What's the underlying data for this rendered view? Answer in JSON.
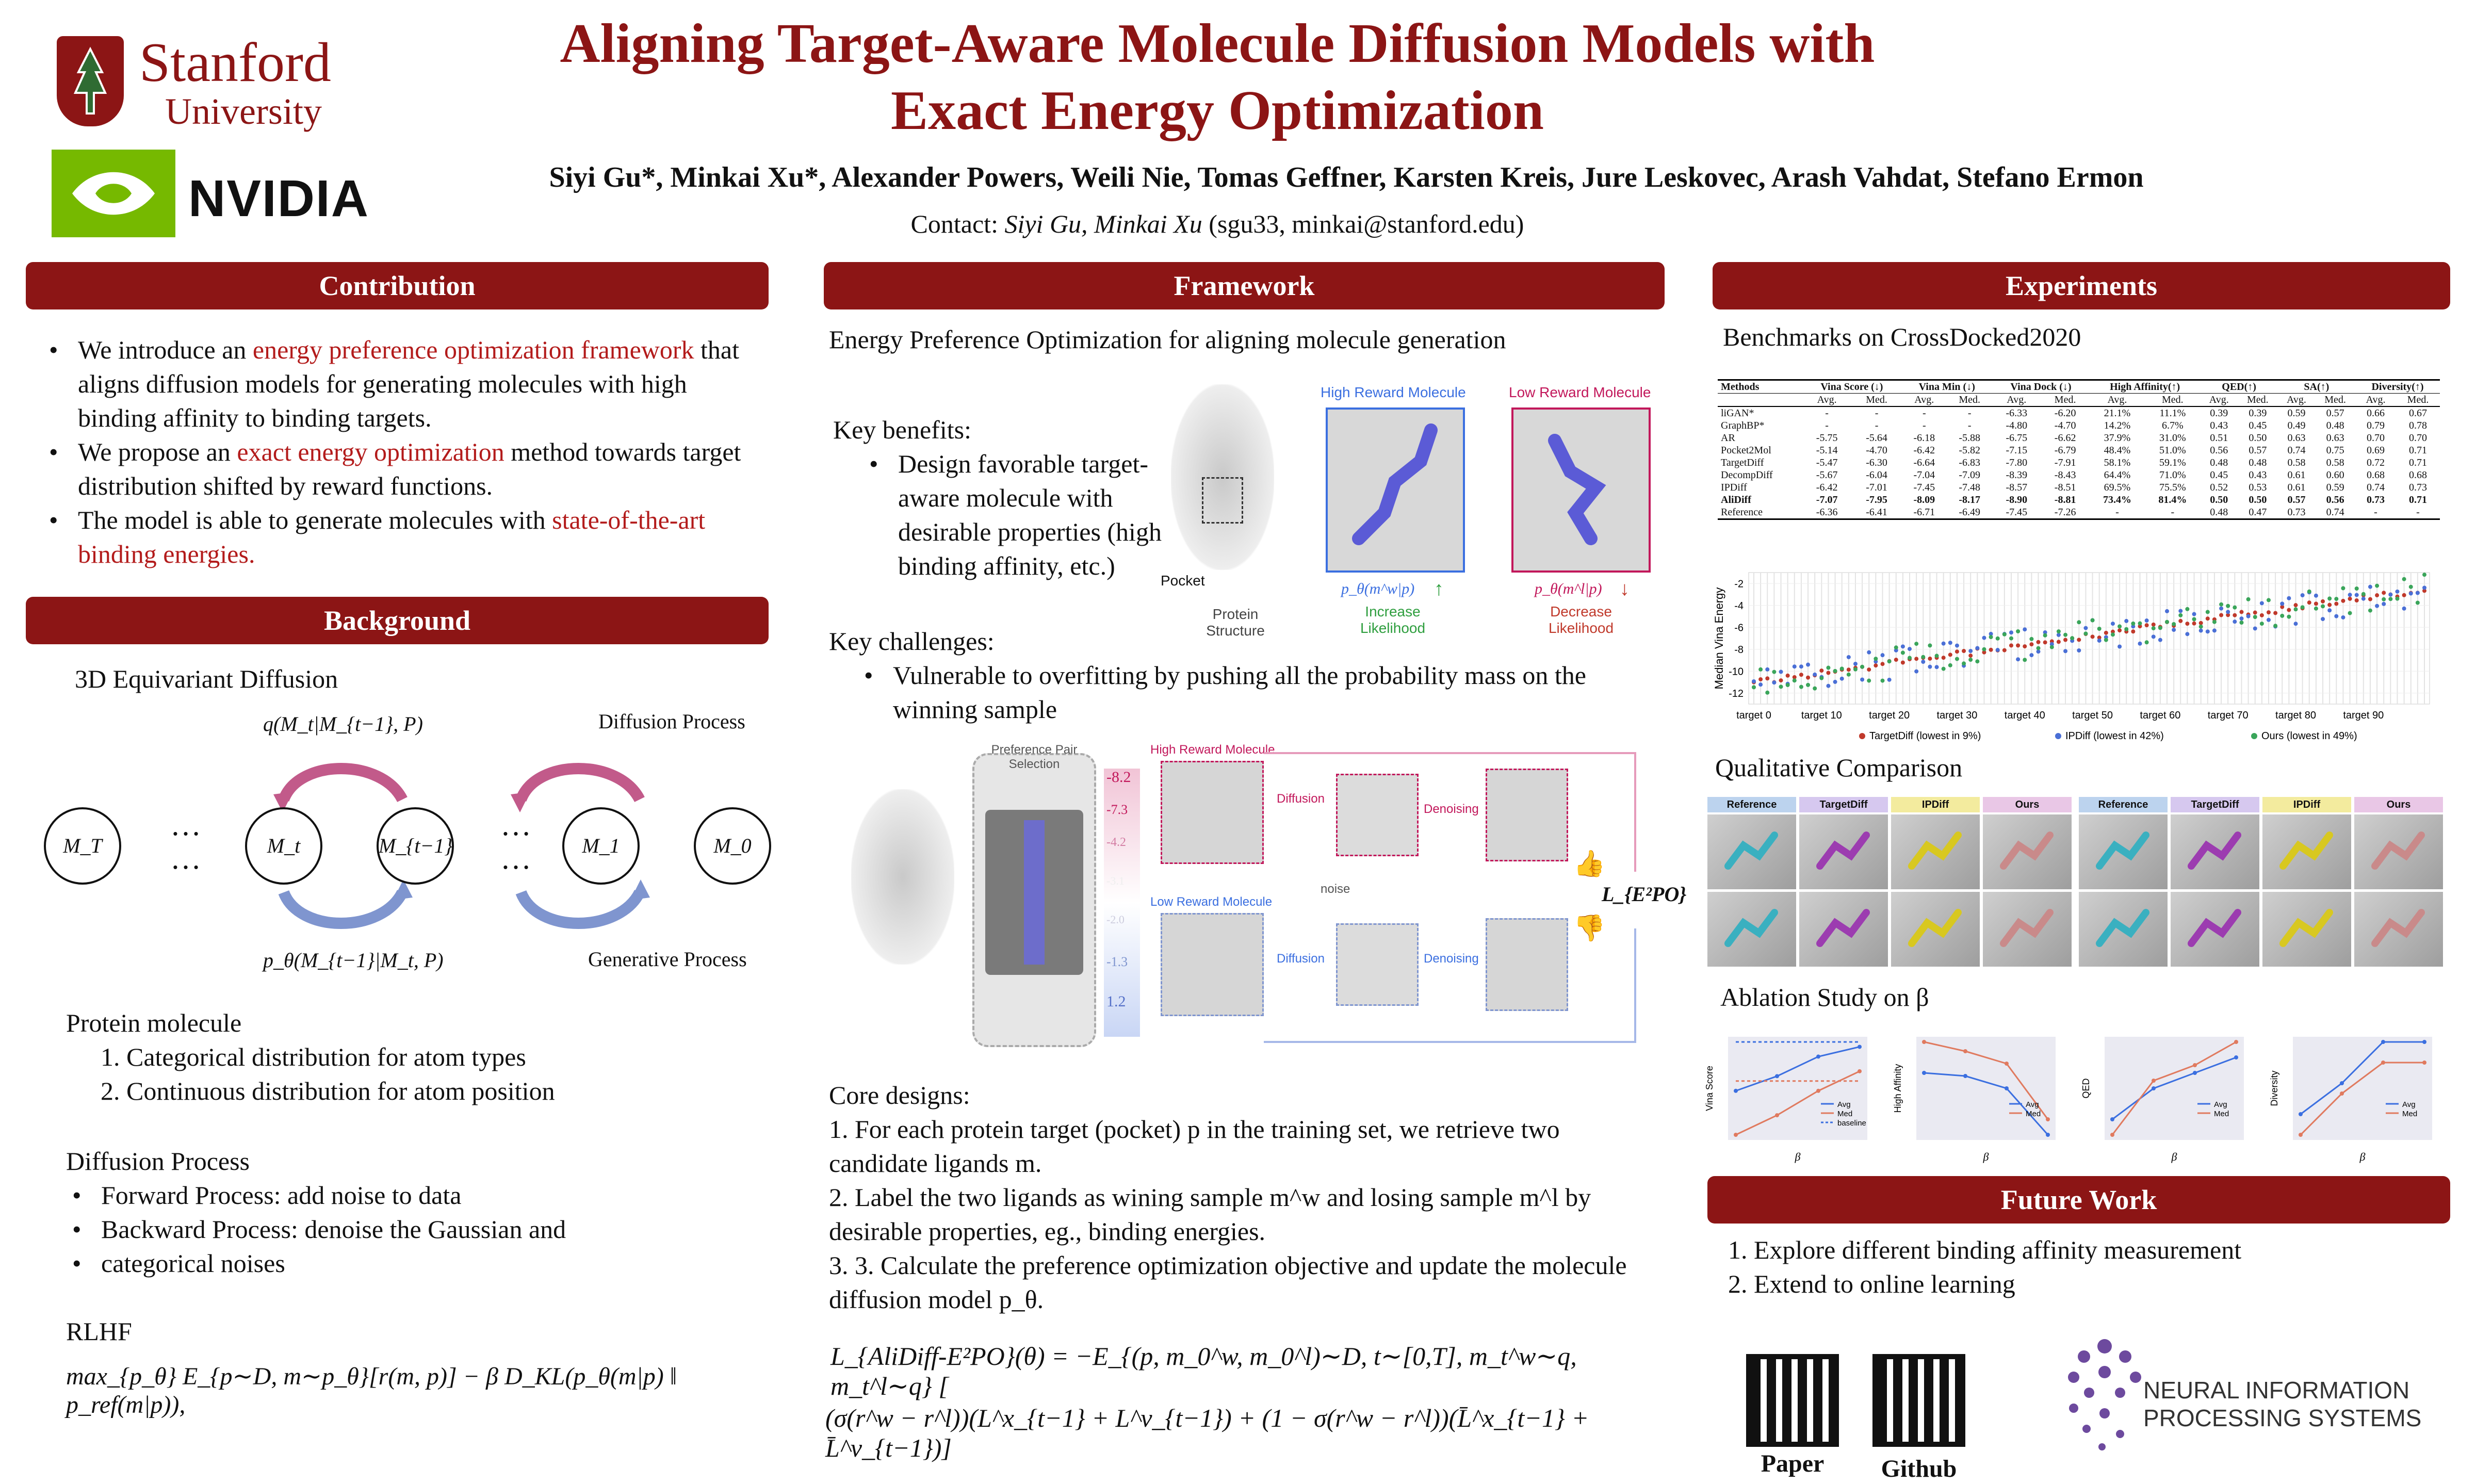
{
  "header": {
    "university": "Stanford",
    "university_sub": "University",
    "nvidia": "NVIDIA",
    "title_line1": "Aligning Target-Aware Molecule Diffusion Models with",
    "title_line2": "Exact Energy Optimization",
    "authors": "Siyi Gu*, Minkai Xu*, Alexander Powers, Weili Nie, Tomas Geffner, Karsten Kreis, Jure Leskovec, Arash Vahdat, Stefano Ermon",
    "contact_prefix": "Contact: ",
    "contact_names": "Siyi Gu, Minkai Xu",
    "contact_emails": " (sgu33, minkai@stanford.edu)"
  },
  "contribution": {
    "heading": "Contribution",
    "b1_a": "We introduce an ",
    "b1_red": "energy preference optimization framework",
    "b1_b": " that aligns diffusion models for generating molecules with high binding affinity to binding targets.",
    "b2_a": "We propose an ",
    "b2_red": "exact energy optimization",
    "b2_b": " method towards target distribution shifted by reward functions.",
    "b3_a": "The model is able to generate molecules with ",
    "b3_red": "state-of-the-art binding energies."
  },
  "background": {
    "heading": "Background",
    "sub": "3D Equivariant Diffusion",
    "q_label": "q(M_t|M_{t−1}, P)",
    "p_label": "p_θ(M_{t−1}|M_t, P)",
    "diff_proc": "Diffusion Process",
    "gen_proc": "Generative Process",
    "nodes": [
      "M_T",
      "M_t",
      "M_{t−1}",
      "M_1",
      "M_0"
    ],
    "dots": "…",
    "protein_title": "Protein molecule",
    "protein_items": [
      "1. Categorical distribution for atom types",
      "2. Continuous distribution for atom position"
    ],
    "diffusion_title": "Diffusion Process",
    "diffusion_items": [
      "Forward Process: add noise to data",
      "Backward Process: denoise the Gaussian and",
      "categorical noises"
    ],
    "rlhf_title": "RLHF",
    "rlhf_eq": "max_{p_θ} E_{p∼D, m∼p_θ}[r(m, p)] − β D_KL(p_θ(m|p) ‖ p_ref(m|p)),"
  },
  "framework": {
    "heading": "Framework",
    "intro": "Energy Preference Optimization for aligning molecule generation",
    "benefits_title": "Key benefits:",
    "benefit": "Design favorable target-aware molecule with desirable properties (high binding affinity, etc.)",
    "challenges_title": "Key challenges:",
    "challenge": "Vulnerable to overfitting by pushing all the probability mass on the winning sample",
    "fig1": {
      "high": "High Reward Molecule",
      "low": "Low Reward Molecule",
      "pocket": "Pocket",
      "protein": "Protein Structure",
      "pw": "p_θ(m^w|p)",
      "pl": "p_θ(m^l|p)",
      "inc": "Increase Likelihood",
      "dec": "Decrease Likelihood"
    },
    "fig2": {
      "pref": "Preference Pair Selection",
      "high": "High Reward Molecule",
      "low": "Low Reward Molecule",
      "diffusion": "Diffusion",
      "denoising": "Denoising",
      "noise": "noise",
      "loss": "L_{E²PO}",
      "scores": [
        "-8.2",
        "-7.3",
        "-4.2",
        "-3.1",
        "-2.0",
        "-1.3",
        "1.2"
      ]
    },
    "core_title": "Core designs:",
    "core_items": [
      "1.    For each protein target (pocket) p in the training set, we retrieve two candidate ligands m.",
      "2.   Label the two ligands as wining sample m^w and losing sample m^l by desirable properties, eg., binding energies.",
      "3.    3. Calculate the preference optimization objective and update the molecule diffusion model p_θ."
    ],
    "loss_eq_1": "L_{AliDiff-E²PO}(θ) = −E_{(p, m_0^w, m_0^l)∼D, t∼[0,T], m_t^w∼q, m_t^l∼q} [",
    "loss_eq_2": "(σ(r^w − r^l))(L^x_{t−1} + L^v_{t−1}) + (1 − σ(r^w − r^l))(L̄^x_{t−1} + L̄^v_{t−1})]"
  },
  "experiments": {
    "heading": "Experiments",
    "bench_title": "Benchmarks on CrossDocked2020",
    "table": {
      "groups": [
        "Methods",
        "Vina Score (↓)",
        "Vina Min (↓)",
        "Vina Dock (↓)",
        "High Affinity(↑)",
        "QED(↑)",
        "SA(↑)",
        "Diversity(↑)"
      ],
      "sub": [
        "",
        "Avg.",
        "Med.",
        "Avg.",
        "Med.",
        "Avg.",
        "Med.",
        "Avg.",
        "Med.",
        "Avg.",
        "Med.",
        "Avg.",
        "Med.",
        "Avg.",
        "Med."
      ],
      "rows": [
        [
          "liGAN*",
          "-",
          "-",
          "-",
          "-",
          "-6.33",
          "-6.20",
          "21.1%",
          "11.1%",
          "0.39",
          "0.39",
          "0.59",
          "0.57",
          "0.66",
          "0.67"
        ],
        [
          "GraphBP*",
          "-",
          "-",
          "-",
          "-",
          "-4.80",
          "-4.70",
          "14.2%",
          "6.7%",
          "0.43",
          "0.45",
          "0.49",
          "0.48",
          "0.79",
          "0.78"
        ],
        [
          "AR",
          "-5.75",
          "-5.64",
          "-6.18",
          "-5.88",
          "-6.75",
          "-6.62",
          "37.9%",
          "31.0%",
          "0.51",
          "0.50",
          "0.63",
          "0.63",
          "0.70",
          "0.70"
        ],
        [
          "Pocket2Mol",
          "-5.14",
          "-4.70",
          "-6.42",
          "-5.82",
          "-7.15",
          "-6.79",
          "48.4%",
          "51.0%",
          "0.56",
          "0.57",
          "0.74",
          "0.75",
          "0.69",
          "0.71"
        ],
        [
          "TargetDiff",
          "-5.47",
          "-6.30",
          "-6.64",
          "-6.83",
          "-7.80",
          "-7.91",
          "58.1%",
          "59.1%",
          "0.48",
          "0.48",
          "0.58",
          "0.58",
          "0.72",
          "0.71"
        ],
        [
          "DecompDiff",
          "-5.67",
          "-6.04",
          "-7.04",
          "-7.09",
          "-8.39",
          "-8.43",
          "64.4%",
          "71.0%",
          "0.45",
          "0.43",
          "0.61",
          "0.60",
          "0.68",
          "0.68"
        ],
        [
          "IPDiff",
          "-6.42",
          "-7.01",
          "-7.45",
          "-7.48",
          "-8.57",
          "-8.51",
          "69.5%",
          "75.5%",
          "0.52",
          "0.53",
          "0.61",
          "0.59",
          "0.74",
          "0.73"
        ],
        [
          "AliDiff",
          "-7.07",
          "-7.95",
          "-8.09",
          "-8.17",
          "-8.90",
          "-8.81",
          "73.4%",
          "81.4%",
          "0.50",
          "0.50",
          "0.57",
          "0.56",
          "0.73",
          "0.71"
        ],
        [
          "Reference",
          "-6.36",
          "-6.41",
          "-6.71",
          "-6.49",
          "-7.45",
          "-7.26",
          "-",
          "-",
          "0.48",
          "0.47",
          "0.73",
          "0.74",
          "-",
          "-"
        ]
      ]
    },
    "qual_title": "Qualitative Comparison",
    "qual_cols": [
      "Reference",
      "TargetDiff",
      "IPDiff",
      "Ours"
    ],
    "ablation_title": "Ablation Study on β",
    "future_heading": "Future Work",
    "future_items": [
      "1.    Explore different binding affinity measurement",
      "2.    Extend to online learning"
    ],
    "paper_label": "Paper",
    "github_label": "Github",
    "neurips_line1": "NEURAL INFORMATION",
    "neurips_line2": "PROCESSING SYSTEMS"
  },
  "chart_data": [
    {
      "type": "scatter",
      "ylabel": "Median Vina Energy",
      "xlabel": "",
      "x_ticks": [
        "target 0",
        "target 10",
        "target 20",
        "target 30",
        "target 40",
        "target 50",
        "target 60",
        "target 70",
        "target 80",
        "target 90"
      ],
      "y_ticks": [
        -2,
        -4,
        -6,
        -8,
        -10,
        -12
      ],
      "ylim": [
        -13,
        -1
      ],
      "series": [
        {
          "name": "TargetDiff (lowest in 9%)",
          "color": "#c0392b"
        },
        {
          "name": "IPDiff (lowest in 42%)",
          "color": "#4a6fd6"
        },
        {
          "name": "Ours (lowest in 49%)",
          "color": "#3aa55a"
        }
      ],
      "grid": true,
      "legend": "bottom"
    },
    {
      "type": "line",
      "ylabel": "Vina Score",
      "xlabel": "β",
      "series": [
        {
          "name": "Avg",
          "values": [
            -7.0,
            -6.7,
            -6.3,
            -6.1
          ],
          "color": "#3b6fe0"
        },
        {
          "name": "Med",
          "values": [
            -7.9,
            -7.5,
            -7.0,
            -6.6
          ],
          "color": "#e07a5f"
        },
        {
          "name": "baseline",
          "values": [
            -6.0,
            -6.0,
            -6.0,
            -6.0
          ],
          "color": "#3b6fe0"
        },
        {
          "name": "baseline",
          "values": [
            -6.8,
            -6.8,
            -6.8,
            -6.8
          ],
          "color": "#e07a5f"
        }
      ]
    },
    {
      "type": "line",
      "ylabel": "High Affinity",
      "xlabel": "β",
      "series": [
        {
          "name": "Avg",
          "values": [
            0.75,
            0.74,
            0.7,
            0.55
          ],
          "color": "#3b6fe0"
        },
        {
          "name": "Med",
          "values": [
            0.85,
            0.82,
            0.78,
            0.6
          ],
          "color": "#e07a5f"
        }
      ]
    },
    {
      "type": "line",
      "ylabel": "QED",
      "xlabel": "β",
      "series": [
        {
          "name": "Avg",
          "values": [
            0.42,
            0.46,
            0.48,
            0.5
          ],
          "color": "#3b6fe0"
        },
        {
          "name": "Med",
          "values": [
            0.4,
            0.47,
            0.49,
            0.52
          ],
          "color": "#e07a5f"
        }
      ]
    },
    {
      "type": "line",
      "ylabel": "Diversity",
      "xlabel": "β",
      "series": [
        {
          "name": "Avg",
          "values": [
            0.66,
            0.69,
            0.73,
            0.73
          ],
          "color": "#3b6fe0"
        },
        {
          "name": "Med",
          "values": [
            0.64,
            0.68,
            0.71,
            0.71
          ],
          "color": "#e07a5f"
        }
      ]
    }
  ]
}
